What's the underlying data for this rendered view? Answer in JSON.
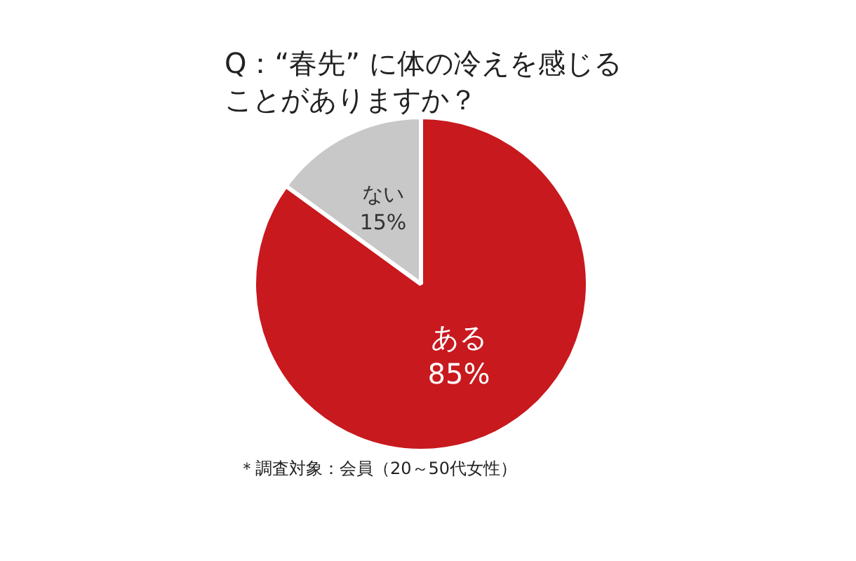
{
  "chart_data": {
    "type": "pie",
    "title": "Q：“春先” に体の冷えを感じることがありますか？",
    "categories": [
      "ある",
      "ない"
    ],
    "values": [
      85,
      15
    ],
    "colors": [
      "#c8191e",
      "#c8c8c8"
    ],
    "value_labels": [
      "85%",
      "15%"
    ],
    "legend": false,
    "annotations": [
      "＊調査対象：会員（20～50代女性）"
    ]
  }
}
